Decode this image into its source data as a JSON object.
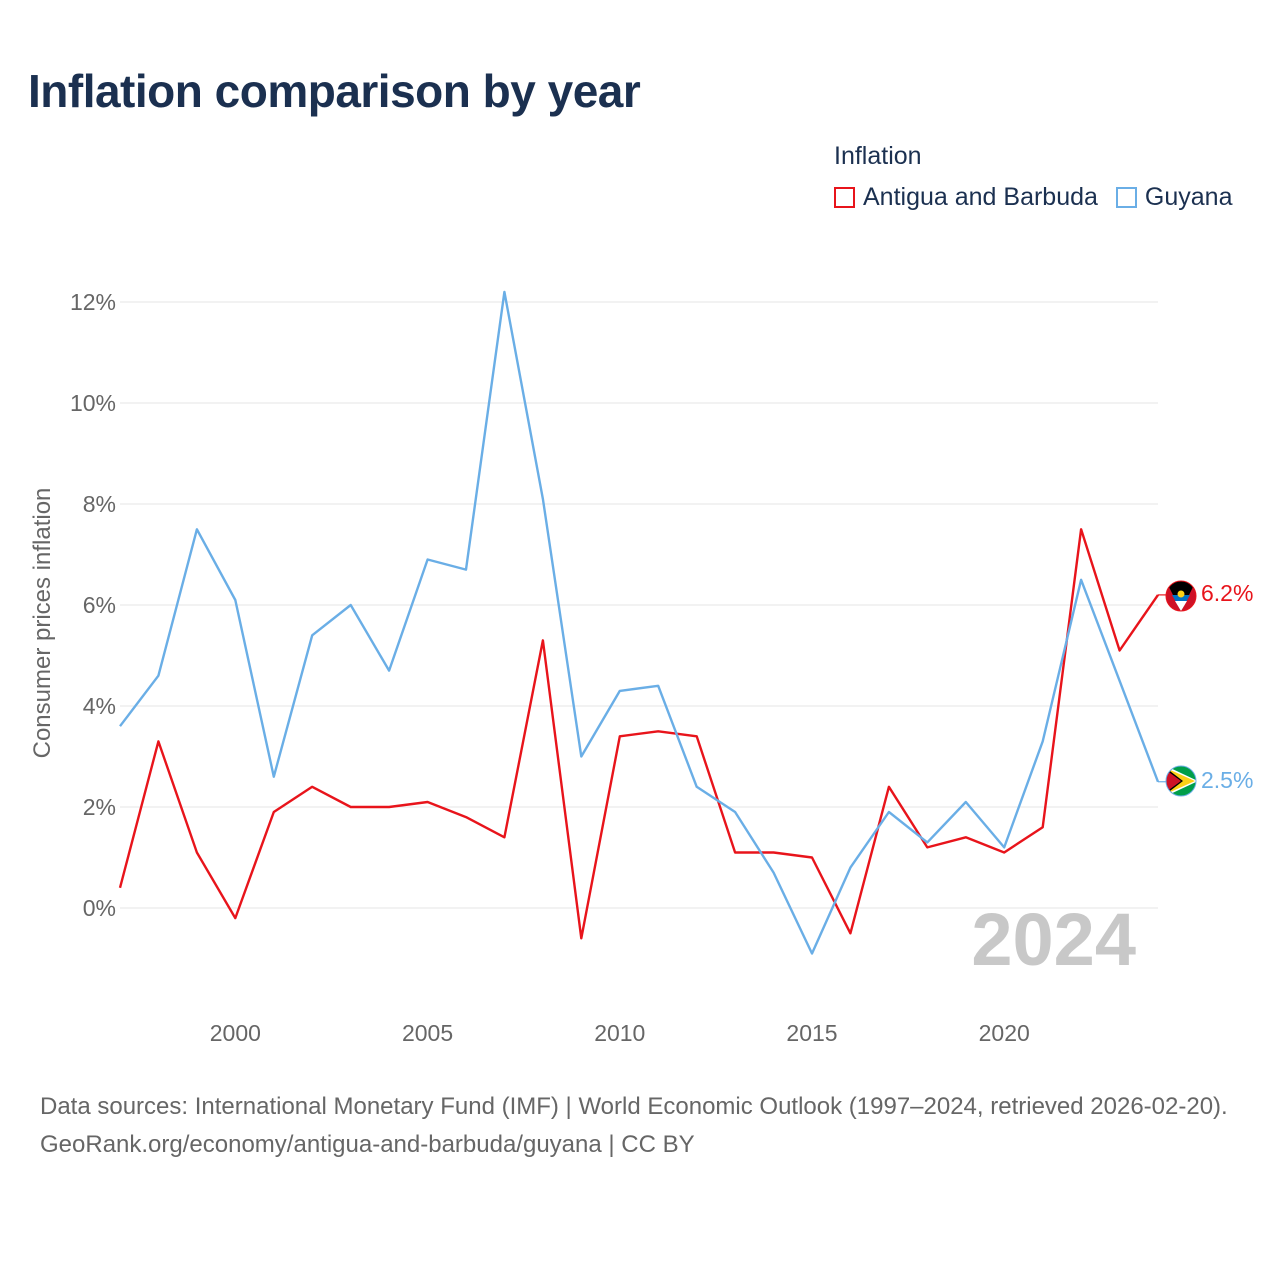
{
  "title": "Inflation comparison by year",
  "legend": {
    "title": "Inflation",
    "items": [
      {
        "label": "Antigua and Barbuda",
        "color": "#e8141b"
      },
      {
        "label": "Guyana",
        "color": "#6aaee6"
      }
    ]
  },
  "footer": {
    "sources": "Data sources: International Monetary Fund (IMF) | World Economic Outlook (1997–2024, retrieved 2026-02-20).",
    "credit": "GeoRank.org/economy/antigua-and-barbuda/guyana | CC BY"
  },
  "chart_data": {
    "type": "line",
    "title": "Inflation comparison by year",
    "ylabel": "Consumer prices inflation",
    "xlabel": "",
    "year_label": "2024",
    "x": [
      1997,
      1998,
      1999,
      2000,
      2001,
      2002,
      2003,
      2004,
      2005,
      2006,
      2007,
      2008,
      2009,
      2010,
      2011,
      2012,
      2013,
      2014,
      2015,
      2016,
      2017,
      2018,
      2019,
      2020,
      2021,
      2022,
      2023,
      2024
    ],
    "xlim": [
      1997,
      2024
    ],
    "ylim": [
      -2,
      12.5
    ],
    "x_ticks": [
      2000,
      2005,
      2010,
      2015,
      2020
    ],
    "y_ticks": [
      0,
      2,
      4,
      6,
      8,
      10,
      12
    ],
    "y_tick_labels": [
      "0%",
      "2%",
      "4%",
      "6%",
      "8%",
      "10%",
      "12%"
    ],
    "grid": true,
    "series": [
      {
        "name": "Antigua and Barbuda",
        "color": "#e8141b",
        "end_label": "6.2%",
        "values": [
          0.4,
          3.3,
          1.1,
          -0.2,
          1.9,
          2.4,
          2.0,
          2.0,
          2.1,
          1.8,
          1.4,
          5.3,
          -0.6,
          3.4,
          3.5,
          3.4,
          1.1,
          1.1,
          1.0,
          -0.5,
          2.4,
          1.2,
          1.4,
          1.1,
          1.6,
          7.5,
          5.1,
          6.2
        ]
      },
      {
        "name": "Guyana",
        "color": "#6aaee6",
        "end_label": "2.5%",
        "values": [
          3.6,
          4.6,
          7.5,
          6.1,
          2.6,
          5.4,
          6.0,
          4.7,
          6.9,
          6.7,
          12.2,
          8.1,
          3.0,
          4.3,
          4.4,
          2.4,
          1.9,
          0.7,
          -0.9,
          0.8,
          1.9,
          1.3,
          2.1,
          1.2,
          3.3,
          6.5,
          4.5,
          2.5
        ]
      }
    ]
  }
}
